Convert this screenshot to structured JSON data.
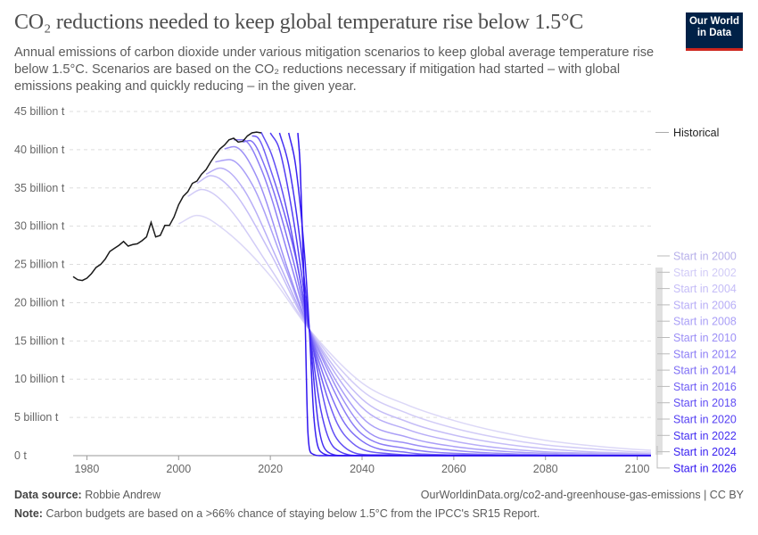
{
  "header": {
    "title": "CO₂ reductions needed to keep global temperature rise below 1.5°C",
    "subtitle": "Annual emissions of carbon dioxide under various mitigation scenarios to keep global average temperature rise below 1.5°C. Scenarios are based on the CO₂ reductions necessary if mitigation had started – with global emissions peaking and quickly reducing – in the given year.",
    "logo": "Our World in Data"
  },
  "footer": {
    "source_label": "Data source:",
    "source": "Robbie Andrew",
    "url": "OurWorldinData.org/co2-and-greenhouse-gas-emissions | CC BY",
    "note_label": "Note:",
    "note": "Carbon budgets are based on a >66% chance of staying below 1.5°C from the IPCC's SR15 Report."
  },
  "chart_data": {
    "type": "line",
    "xlim": [
      1977,
      2103
    ],
    "ylim": [
      0,
      45
    ],
    "grid": "horizontal dashed",
    "legend_placement": "right",
    "x_ticks": [
      1980,
      2000,
      2020,
      2040,
      2060,
      2080,
      2100
    ],
    "y_ticks": [
      {
        "v": 0,
        "label": "0 t"
      },
      {
        "v": 5,
        "label": "5 billion t"
      },
      {
        "v": 10,
        "label": "10 billion t"
      },
      {
        "v": 15,
        "label": "15 billion t"
      },
      {
        "v": 20,
        "label": "20 billion t"
      },
      {
        "v": 25,
        "label": "25 billion t"
      },
      {
        "v": 30,
        "label": "30 billion t"
      },
      {
        "v": 35,
        "label": "35 billion t"
      },
      {
        "v": 40,
        "label": "40 billion t"
      },
      {
        "v": 45,
        "label": "45 billion t"
      }
    ],
    "historical": {
      "name": "Historical",
      "color": "#1a1a1a",
      "x": [
        1977,
        1978,
        1979,
        1980,
        1981,
        1982,
        1983,
        1984,
        1985,
        1986,
        1987,
        1988,
        1989,
        1990,
        1991,
        1992,
        1993,
        1994,
        1995,
        1996,
        1997,
        1998,
        1999,
        2000,
        2001,
        2002,
        2003,
        2004,
        2005,
        2006,
        2007,
        2008,
        2009,
        2010,
        2011,
        2012,
        2013,
        2014,
        2015,
        2016,
        2017,
        2018
      ],
      "y": [
        23.4,
        23.0,
        22.9,
        23.2,
        23.8,
        24.6,
        25.0,
        25.7,
        26.7,
        27.1,
        27.5,
        28.0,
        27.4,
        27.6,
        27.7,
        28.1,
        28.6,
        30.5,
        28.6,
        28.8,
        30.1,
        30.1,
        31.2,
        32.8,
        33.9,
        34.5,
        35.6,
        35.9,
        36.8,
        37.4,
        38.4,
        39.3,
        40.1,
        40.6,
        41.3,
        41.5,
        41.0,
        41.1,
        41.8,
        42.2,
        42.3,
        42.2
      ]
    },
    "series": [
      {
        "name": "Start in 2000",
        "color": "#dcd8f7",
        "points": [
          [
            2000,
            30.3
          ],
          [
            2004,
            31.4
          ],
          [
            2010,
            29.5
          ],
          [
            2020,
            23.5
          ],
          [
            2028.5,
            16.5
          ],
          [
            2040,
            9.5
          ],
          [
            2050,
            6.6
          ],
          [
            2060,
            4.6
          ],
          [
            2070,
            3.1
          ],
          [
            2080,
            2.0
          ],
          [
            2090,
            1.3
          ],
          [
            2100,
            0.8
          ],
          [
            2103,
            0.7
          ]
        ]
      },
      {
        "name": "Start in 2002",
        "color": "#d2ccf7",
        "points": [
          [
            2002,
            33.9
          ],
          [
            2005,
            34.8
          ],
          [
            2010,
            33
          ],
          [
            2020,
            24.5
          ],
          [
            2028.5,
            16.5
          ],
          [
            2040,
            8.5
          ],
          [
            2050,
            5.5
          ],
          [
            2060,
            3.6
          ],
          [
            2070,
            2.3
          ],
          [
            2080,
            1.4
          ],
          [
            2090,
            0.9
          ],
          [
            2100,
            0.5
          ],
          [
            2103,
            0.45
          ]
        ]
      },
      {
        "name": "Start in 2004",
        "color": "#c5bdf7",
        "points": [
          [
            2004,
            35.6
          ],
          [
            2007,
            36.6
          ],
          [
            2012,
            34.5
          ],
          [
            2020,
            26.5
          ],
          [
            2028.5,
            16.5
          ],
          [
            2040,
            7.4
          ],
          [
            2050,
            4.4
          ],
          [
            2060,
            2.7
          ],
          [
            2070,
            1.6
          ],
          [
            2080,
            0.9
          ],
          [
            2090,
            0.5
          ],
          [
            2100,
            0.3
          ],
          [
            2103,
            0.25
          ]
        ]
      },
      {
        "name": "Start in 2006",
        "color": "#b8aef7",
        "points": [
          [
            2006,
            36.8
          ],
          [
            2009,
            37.6
          ],
          [
            2014,
            35
          ],
          [
            2022,
            25
          ],
          [
            2028.5,
            16.5
          ],
          [
            2040,
            6.3
          ],
          [
            2050,
            3.4
          ],
          [
            2060,
            1.9
          ],
          [
            2070,
            1.0
          ],
          [
            2080,
            0.5
          ],
          [
            2100,
            0.2
          ],
          [
            2103,
            0.15
          ]
        ]
      },
      {
        "name": "Start in 2008",
        "color": "#aa9ff7",
        "points": [
          [
            2008,
            38.4
          ],
          [
            2011,
            38.7
          ],
          [
            2016,
            35.5
          ],
          [
            2023,
            25
          ],
          [
            2028.5,
            16.5
          ],
          [
            2040,
            5.0
          ],
          [
            2050,
            2.4
          ],
          [
            2060,
            1.2
          ],
          [
            2070,
            0.6
          ],
          [
            2080,
            0.3
          ],
          [
            2100,
            0.1
          ],
          [
            2103,
            0.1
          ]
        ]
      },
      {
        "name": "Start in 2010",
        "color": "#9c8ff6",
        "points": [
          [
            2010,
            40.1
          ],
          [
            2012,
            40.4
          ],
          [
            2017,
            36.5
          ],
          [
            2024,
            24
          ],
          [
            2028.5,
            16.5
          ],
          [
            2040,
            3.8
          ],
          [
            2050,
            1.6
          ],
          [
            2060,
            0.7
          ],
          [
            2070,
            0.3
          ],
          [
            2100,
            0
          ],
          [
            2103,
            0
          ]
        ]
      },
      {
        "name": "Start in 2012",
        "color": "#8d7ef6",
        "points": [
          [
            2012,
            41.3
          ],
          [
            2014,
            41.3
          ],
          [
            2018,
            37.5
          ],
          [
            2024.5,
            25
          ],
          [
            2028.5,
            16.5
          ],
          [
            2036,
            6
          ],
          [
            2040,
            2.8
          ],
          [
            2050,
            0.9
          ],
          [
            2060,
            0.3
          ],
          [
            2100,
            0
          ],
          [
            2103,
            0
          ]
        ]
      },
      {
        "name": "Start in 2014",
        "color": "#7e6ef5",
        "points": [
          [
            2014,
            41.0
          ],
          [
            2015.5,
            41.2
          ],
          [
            2019,
            37.5
          ],
          [
            2025,
            25.5
          ],
          [
            2028.5,
            16.5
          ],
          [
            2035,
            5.5
          ],
          [
            2040,
            1.9
          ],
          [
            2050,
            0.4
          ],
          [
            2060,
            0.1
          ],
          [
            2100,
            0
          ],
          [
            2103,
            0
          ]
        ]
      },
      {
        "name": "Start in 2016",
        "color": "#705ef5",
        "points": [
          [
            2016,
            41.8
          ],
          [
            2017,
            41.7
          ],
          [
            2020,
            37.5
          ],
          [
            2025.5,
            26
          ],
          [
            2028.5,
            16.5
          ],
          [
            2034,
            5
          ],
          [
            2038,
            1.6
          ],
          [
            2045,
            0.3
          ],
          [
            2060,
            0
          ],
          [
            2100,
            0
          ],
          [
            2103,
            0
          ]
        ]
      },
      {
        "name": "Start in 2018",
        "color": "#614ef4",
        "points": [
          [
            2018,
            42.3
          ],
          [
            2020.5,
            39
          ],
          [
            2024,
            31
          ],
          [
            2028.5,
            16.5
          ],
          [
            2033,
            4.2
          ],
          [
            2036,
            1.2
          ],
          [
            2042,
            0.1
          ],
          [
            2100,
            0
          ],
          [
            2103,
            0
          ]
        ]
      },
      {
        "name": "Start in 2020",
        "color": "#533ef3",
        "points": [
          [
            2020,
            42.2
          ],
          [
            2022,
            40
          ],
          [
            2025,
            31
          ],
          [
            2028.5,
            16.5
          ],
          [
            2031,
            6
          ],
          [
            2034,
            1
          ],
          [
            2040,
            0
          ],
          [
            2100,
            0
          ],
          [
            2103,
            0
          ]
        ]
      },
      {
        "name": "Start in 2022",
        "color": "#4530f2",
        "points": [
          [
            2022,
            42.2
          ],
          [
            2024,
            38
          ],
          [
            2026.5,
            28
          ],
          [
            2028.5,
            16.5
          ],
          [
            2030.5,
            4
          ],
          [
            2032.5,
            0.5
          ],
          [
            2036,
            0
          ],
          [
            2100,
            0
          ],
          [
            2103,
            0
          ]
        ]
      },
      {
        "name": "Start in 2024",
        "color": "#3a22f1",
        "points": [
          [
            2024,
            42.2
          ],
          [
            2025.5,
            38
          ],
          [
            2027.5,
            26
          ],
          [
            2028.5,
            16.5
          ],
          [
            2029.5,
            5
          ],
          [
            2031,
            0.5
          ],
          [
            2034,
            0
          ],
          [
            2100,
            0
          ],
          [
            2103,
            0
          ]
        ]
      },
      {
        "name": "Start in 2026",
        "color": "#2f14f0",
        "points": [
          [
            2026,
            42.2
          ],
          [
            2026.5,
            38
          ],
          [
            2027.5,
            20
          ],
          [
            2028.2,
            3
          ],
          [
            2029,
            0.3
          ],
          [
            2031,
            0
          ],
          [
            2100,
            0
          ],
          [
            2103,
            0
          ]
        ]
      }
    ]
  }
}
